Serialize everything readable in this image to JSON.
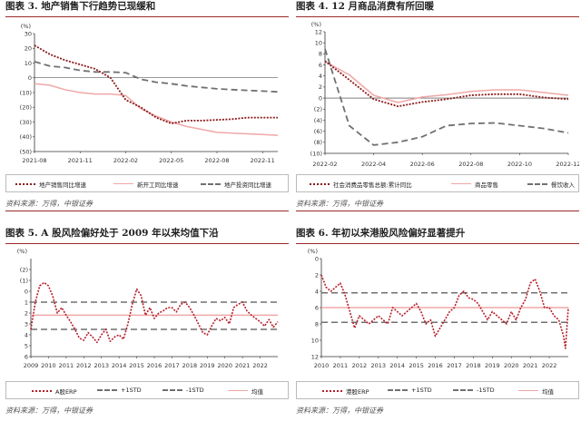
{
  "charts": [
    {
      "title": "图表 3. 地产销售下行趋势已现缓和",
      "source": "资料来源：万得，中银证券",
      "chart_data": {
        "type": "line",
        "ylabel": "(%)",
        "ylim": [
          -50,
          30
        ],
        "yticks": [
          30,
          20,
          10,
          0,
          -10,
          -20,
          -30,
          -40,
          -50
        ],
        "ytick_labels": [
          "30",
          "20",
          "10",
          "0",
          "(10)",
          "(20)",
          "(30)",
          "(40)",
          "(50)"
        ],
        "xlim": [
          0,
          16
        ],
        "x_tick_positions": [
          0,
          3,
          6,
          9,
          12,
          15
        ],
        "x_tick_labels": [
          "2021-08",
          "2021-11",
          "2022-02",
          "2022-05",
          "2022-08",
          "2022-11"
        ],
        "zero_line": true,
        "series": [
          {
            "name": "地产销售同比增速",
            "color": "#8b1a1a",
            "style": "dotted",
            "width": 1.8,
            "x": [
              0,
              1,
              2,
              3,
              4,
              5,
              6,
              7,
              8,
              9,
              10,
              11,
              12,
              13,
              14,
              15,
              16
            ],
            "y": [
              22,
              16,
              12,
              9,
              6,
              0,
              -15,
              -20,
              -27,
              -31,
              -29,
              -29,
              -28.5,
              -28,
              -27,
              -27,
              -27
            ]
          },
          {
            "name": "新开工同比增速",
            "color": "#f0a7a7",
            "style": "solid",
            "width": 1.5,
            "x": [
              0,
              1,
              2,
              3,
              4,
              5,
              6,
              7,
              8,
              9,
              10,
              11,
              12,
              13,
              14,
              15,
              16
            ],
            "y": [
              -4,
              -5,
              -8,
              -10,
              -11,
              -11,
              -12,
              -21,
              -26,
              -30,
              -33,
              -35,
              -37,
              -37.5,
              -38,
              -38.5,
              -39
            ]
          },
          {
            "name": "地产投资同比增速",
            "color": "#707070",
            "style": "dashed",
            "width": 1.8,
            "x": [
              0,
              1,
              2,
              3,
              4,
              5,
              6,
              7,
              8,
              9,
              10,
              11,
              12,
              13,
              14,
              15,
              16
            ],
            "y": [
              11,
              8,
              7,
              5,
              4,
              4,
              3.5,
              -1,
              -3,
              -4,
              -5.5,
              -6.5,
              -7.5,
              -8,
              -8.5,
              -9,
              -9.5
            ]
          }
        ]
      }
    },
    {
      "title": "图表 4. 12 月商品消费有所回暖",
      "source": "资料来源：万得，中银证券",
      "chart_data": {
        "type": "line",
        "ylabel": "(%)",
        "ylim": [
          -10,
          12
        ],
        "yticks": [
          12,
          10,
          8,
          6,
          4,
          2,
          0,
          -2,
          -4,
          -6,
          -8,
          -10
        ],
        "ytick_labels": [
          "12",
          "10",
          "8",
          "6",
          "4",
          "2",
          "0",
          "(2)",
          "(4)",
          "(6)",
          "(8)",
          "(10)"
        ],
        "xlim": [
          0,
          10
        ],
        "x_tick_positions": [
          0,
          2,
          4,
          6,
          8,
          10
        ],
        "x_tick_labels": [
          "2022-02",
          "2022-04",
          "2022-06",
          "2022-08",
          "2022-10",
          "2022-12"
        ],
        "zero_line": true,
        "series": [
          {
            "name": "社会消费品零售总额:累计同比",
            "color": "#8b1a1a",
            "style": "dotted",
            "width": 1.8,
            "x": [
              0,
              1,
              2,
              3,
              4,
              5,
              6,
              7,
              8,
              9,
              10
            ],
            "y": [
              6.7,
              3.3,
              -0.2,
              -1.5,
              -0.7,
              -0.2,
              0.5,
              0.7,
              0.7,
              0.1,
              -0.2
            ]
          },
          {
            "name": "商品零售",
            "color": "#f0a7a7",
            "style": "solid",
            "width": 1.5,
            "x": [
              0,
              1,
              2,
              3,
              4,
              5,
              6,
              7,
              8,
              9,
              10
            ],
            "y": [
              6.6,
              4.2,
              0.5,
              -0.8,
              0.2,
              0.6,
              1.2,
              1.5,
              1.5,
              1.0,
              0.5
            ]
          },
          {
            "name": "餐饮收入",
            "color": "#707070",
            "style": "dashed",
            "width": 1.8,
            "x": [
              0,
              1,
              2,
              3,
              4,
              5,
              6,
              7,
              8,
              9,
              10
            ],
            "y": [
              8.9,
              -5,
              -8.5,
              -8,
              -7,
              -5,
              -4.6,
              -4.5,
              -5,
              -5.5,
              -6.3
            ]
          }
        ]
      }
    },
    {
      "title": "图表 5. A 股风险偏好处于 2009 年以来均值下沿",
      "source": "资料来源：万得，中银证券",
      "chart_data": {
        "type": "line",
        "ylabel": "(%)",
        "ylim": [
          -3,
          6
        ],
        "y_inverted": true,
        "yticks": [
          -2,
          -1,
          0,
          1,
          2,
          3,
          4,
          5,
          6
        ],
        "ytick_labels": [
          "(2)",
          "(1)",
          "0",
          "1",
          "2",
          "3",
          "4",
          "5",
          "6"
        ],
        "xlim": [
          2009,
          2023
        ],
        "x_tick_positions": [
          2009,
          2010,
          2011,
          2012,
          2013,
          2014,
          2015,
          2016,
          2017,
          2018,
          2019,
          2020,
          2021,
          2022
        ],
        "x_tick_labels": [
          "2009",
          "2010",
          "2011",
          "2012",
          "2013",
          "2014",
          "2015",
          "2016",
          "2017",
          "2018",
          "2019",
          "2020",
          "2021",
          "2022"
        ],
        "series": [
          {
            "name": "A股ERP",
            "color": "#b51f2a",
            "style": "dotted",
            "width": 1.6,
            "x": [
              2009.0,
              2009.25,
              2009.5,
              2009.75,
              2010.0,
              2010.25,
              2010.5,
              2010.75,
              2011.0,
              2011.25,
              2011.5,
              2011.75,
              2012.0,
              2012.25,
              2012.5,
              2012.75,
              2013.0,
              2013.25,
              2013.5,
              2013.75,
              2014.0,
              2014.25,
              2014.5,
              2014.75,
              2015.0,
              2015.25,
              2015.5,
              2015.75,
              2016.0,
              2016.25,
              2016.5,
              2016.75,
              2017.0,
              2017.25,
              2017.5,
              2017.75,
              2018.0,
              2018.25,
              2018.5,
              2018.75,
              2019.0,
              2019.25,
              2019.5,
              2019.75,
              2020.0,
              2020.25,
              2020.5,
              2020.75,
              2021.0,
              2021.25,
              2021.5,
              2021.75,
              2022.0,
              2022.25,
              2022.5,
              2022.75,
              2023.0
            ],
            "y": [
              3.5,
              1.0,
              -0.5,
              -0.8,
              -0.5,
              0.5,
              2.0,
              1.5,
              2.2,
              2.8,
              3.5,
              4.3,
              4.5,
              3.8,
              4.2,
              4.7,
              4.0,
              3.5,
              4.6,
              4.2,
              4.0,
              4.4,
              3.0,
              1.2,
              -0.2,
              0.4,
              2.2,
              1.5,
              2.5,
              2.0,
              1.8,
              1.5,
              1.5,
              1.9,
              1.2,
              1.0,
              1.5,
              2.2,
              3.0,
              3.8,
              4.0,
              3.2,
              2.5,
              2.7,
              2.4,
              3.0,
              1.5,
              1.2,
              1.0,
              1.8,
              2.2,
              2.5,
              2.8,
              3.2,
              2.6,
              3.3,
              2.8
            ]
          },
          {
            "name": "+1STD",
            "color": "#707070",
            "style": "dashed",
            "width": 1.5,
            "x": [
              2009,
              2023
            ],
            "y": [
              1.0,
              1.0
            ]
          },
          {
            "name": "-1STD",
            "color": "#707070",
            "style": "dashed",
            "width": 1.5,
            "x": [
              2009,
              2023
            ],
            "y": [
              3.5,
              3.5
            ]
          },
          {
            "name": "均值",
            "color": "#f0a7a7",
            "style": "solid",
            "width": 1.5,
            "x": [
              2009,
              2023
            ],
            "y": [
              2.2,
              2.2
            ]
          }
        ]
      }
    },
    {
      "title": "图表 6. 年初以来港股风险偏好显著提升",
      "source": "资料来源：万得，中银证券",
      "chart_data": {
        "type": "line",
        "ylabel": "(%)",
        "ylim": [
          0,
          12
        ],
        "y_inverted": true,
        "yticks": [
          0,
          2,
          4,
          6,
          8,
          10,
          12
        ],
        "ytick_labels": [
          "0",
          "2",
          "4",
          "6",
          "8",
          "10",
          "12"
        ],
        "xlim": [
          2010,
          2023
        ],
        "x_tick_positions": [
          2010,
          2011,
          2012,
          2013,
          2014,
          2015,
          2016,
          2017,
          2018,
          2019,
          2020,
          2021,
          2022
        ],
        "x_tick_labels": [
          "2010",
          "2011",
          "2012",
          "2013",
          "2014",
          "2015",
          "2016",
          "2017",
          "2018",
          "2019",
          "2020",
          "2021",
          "2022"
        ],
        "series": [
          {
            "name": "港股ERP",
            "color": "#b51f2a",
            "style": "dotted",
            "width": 1.6,
            "x": [
              2010.0,
              2010.25,
              2010.5,
              2010.75,
              2011.0,
              2011.25,
              2011.5,
              2011.75,
              2012.0,
              2012.25,
              2012.5,
              2012.75,
              2013.0,
              2013.25,
              2013.5,
              2013.75,
              2014.0,
              2014.25,
              2014.5,
              2014.75,
              2015.0,
              2015.25,
              2015.5,
              2015.75,
              2016.0,
              2016.25,
              2016.5,
              2016.75,
              2017.0,
              2017.25,
              2017.5,
              2017.75,
              2018.0,
              2018.25,
              2018.5,
              2018.75,
              2019.0,
              2019.25,
              2019.5,
              2019.75,
              2020.0,
              2020.25,
              2020.5,
              2020.75,
              2021.0,
              2021.25,
              2021.5,
              2021.75,
              2022.0,
              2022.25,
              2022.5,
              2022.75,
              2022.85,
              2023.0
            ],
            "y": [
              2.0,
              3.5,
              4.0,
              3.5,
              3.0,
              4.5,
              6.5,
              8.5,
              7.0,
              7.5,
              8.0,
              7.5,
              7.0,
              7.5,
              8.0,
              6.0,
              6.5,
              7.0,
              6.5,
              6.0,
              5.5,
              6.5,
              8.0,
              7.5,
              9.5,
              8.5,
              7.5,
              6.5,
              6.0,
              4.5,
              4.0,
              4.8,
              5.0,
              5.5,
              6.5,
              7.5,
              6.5,
              7.0,
              7.5,
              8.0,
              6.5,
              7.5,
              6.0,
              5.0,
              3.0,
              2.5,
              4.0,
              6.0,
              6.0,
              7.0,
              7.5,
              9.5,
              11.0,
              6.0
            ]
          },
          {
            "name": "+1STD",
            "color": "#707070",
            "style": "dashed",
            "width": 1.5,
            "x": [
              2010,
              2023
            ],
            "y": [
              4.2,
              4.2
            ]
          },
          {
            "name": "-1STD",
            "color": "#707070",
            "style": "dashed",
            "width": 1.5,
            "x": [
              2010,
              2023
            ],
            "y": [
              7.8,
              7.8
            ]
          },
          {
            "name": "均值",
            "color": "#f0a7a7",
            "style": "solid",
            "width": 1.5,
            "x": [
              2010,
              2023
            ],
            "y": [
              6.0,
              6.0
            ]
          }
        ]
      }
    }
  ]
}
